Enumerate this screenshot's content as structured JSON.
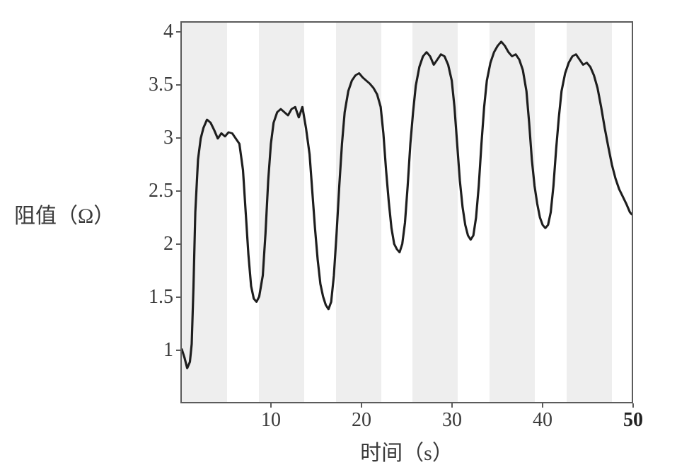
{
  "chart": {
    "type": "line",
    "xlabel": "时间（s）",
    "ylabel": "阻值（Ω）",
    "label_fontsize": 30,
    "tick_fontsize": 28,
    "background_color": "#ffffff",
    "band_color": "#eeeeee",
    "border_color": "#5b5b5b",
    "line_color": "#1e1e1e",
    "line_width": 3.2,
    "xlim": [
      0,
      50
    ],
    "ylim": [
      0.5,
      4.1
    ],
    "xticks": [
      10,
      20,
      30,
      40,
      50
    ],
    "xtick_labels": [
      "10",
      "20",
      "30",
      "40",
      "50"
    ],
    "yticks": [
      1,
      1.5,
      2,
      2.5,
      3,
      3.5,
      4
    ],
    "ytick_labels": [
      "1",
      "1.5",
      "2",
      "2.5",
      "3",
      "3.5",
      "4"
    ],
    "bands": [
      {
        "start": 0,
        "end": 5
      },
      {
        "start": 8.5,
        "end": 13.5
      },
      {
        "start": 17,
        "end": 22
      },
      {
        "start": 25.5,
        "end": 30.5
      },
      {
        "start": 34,
        "end": 39
      },
      {
        "start": 42.5,
        "end": 47.5
      }
    ],
    "series_xy": [
      [
        0.0,
        1.0
      ],
      [
        0.3,
        0.92
      ],
      [
        0.6,
        0.82
      ],
      [
        0.9,
        0.88
      ],
      [
        1.1,
        1.05
      ],
      [
        1.3,
        1.6
      ],
      [
        1.5,
        2.3
      ],
      [
        1.8,
        2.8
      ],
      [
        2.1,
        3.0
      ],
      [
        2.4,
        3.1
      ],
      [
        2.8,
        3.18
      ],
      [
        3.2,
        3.15
      ],
      [
        3.6,
        3.08
      ],
      [
        4.0,
        3.0
      ],
      [
        4.4,
        3.05
      ],
      [
        4.8,
        3.02
      ],
      [
        5.2,
        3.06
      ],
      [
        5.6,
        3.05
      ],
      [
        6.0,
        3.0
      ],
      [
        6.4,
        2.95
      ],
      [
        6.8,
        2.7
      ],
      [
        7.1,
        2.3
      ],
      [
        7.4,
        1.9
      ],
      [
        7.7,
        1.6
      ],
      [
        8.0,
        1.48
      ],
      [
        8.3,
        1.45
      ],
      [
        8.6,
        1.5
      ],
      [
        9.0,
        1.7
      ],
      [
        9.3,
        2.1
      ],
      [
        9.6,
        2.6
      ],
      [
        9.9,
        2.95
      ],
      [
        10.2,
        3.15
      ],
      [
        10.6,
        3.25
      ],
      [
        11.0,
        3.28
      ],
      [
        11.4,
        3.25
      ],
      [
        11.8,
        3.22
      ],
      [
        12.2,
        3.28
      ],
      [
        12.6,
        3.3
      ],
      [
        13.0,
        3.2
      ],
      [
        13.4,
        3.3
      ],
      [
        13.8,
        3.1
      ],
      [
        14.2,
        2.85
      ],
      [
        14.5,
        2.5
      ],
      [
        14.8,
        2.15
      ],
      [
        15.1,
        1.85
      ],
      [
        15.4,
        1.62
      ],
      [
        15.7,
        1.5
      ],
      [
        16.0,
        1.42
      ],
      [
        16.3,
        1.38
      ],
      [
        16.6,
        1.45
      ],
      [
        16.9,
        1.7
      ],
      [
        17.2,
        2.1
      ],
      [
        17.5,
        2.55
      ],
      [
        17.8,
        2.95
      ],
      [
        18.1,
        3.25
      ],
      [
        18.5,
        3.45
      ],
      [
        18.9,
        3.55
      ],
      [
        19.3,
        3.6
      ],
      [
        19.7,
        3.62
      ],
      [
        20.1,
        3.58
      ],
      [
        20.5,
        3.55
      ],
      [
        20.9,
        3.52
      ],
      [
        21.3,
        3.48
      ],
      [
        21.7,
        3.42
      ],
      [
        22.1,
        3.3
      ],
      [
        22.4,
        3.05
      ],
      [
        22.7,
        2.7
      ],
      [
        23.0,
        2.4
      ],
      [
        23.3,
        2.15
      ],
      [
        23.6,
        2.0
      ],
      [
        23.9,
        1.95
      ],
      [
        24.2,
        1.92
      ],
      [
        24.5,
        2.0
      ],
      [
        24.8,
        2.2
      ],
      [
        25.1,
        2.55
      ],
      [
        25.4,
        2.95
      ],
      [
        25.7,
        3.25
      ],
      [
        26.0,
        3.5
      ],
      [
        26.4,
        3.68
      ],
      [
        26.8,
        3.78
      ],
      [
        27.2,
        3.82
      ],
      [
        27.6,
        3.78
      ],
      [
        28.0,
        3.7
      ],
      [
        28.4,
        3.75
      ],
      [
        28.8,
        3.8
      ],
      [
        29.2,
        3.78
      ],
      [
        29.6,
        3.7
      ],
      [
        30.0,
        3.55
      ],
      [
        30.3,
        3.3
      ],
      [
        30.6,
        2.95
      ],
      [
        30.9,
        2.6
      ],
      [
        31.2,
        2.35
      ],
      [
        31.5,
        2.18
      ],
      [
        31.8,
        2.08
      ],
      [
        32.1,
        2.04
      ],
      [
        32.4,
        2.08
      ],
      [
        32.7,
        2.25
      ],
      [
        33.0,
        2.55
      ],
      [
        33.3,
        2.95
      ],
      [
        33.6,
        3.3
      ],
      [
        33.9,
        3.55
      ],
      [
        34.3,
        3.72
      ],
      [
        34.7,
        3.82
      ],
      [
        35.1,
        3.88
      ],
      [
        35.5,
        3.92
      ],
      [
        35.9,
        3.88
      ],
      [
        36.3,
        3.82
      ],
      [
        36.7,
        3.78
      ],
      [
        37.1,
        3.8
      ],
      [
        37.5,
        3.75
      ],
      [
        37.9,
        3.65
      ],
      [
        38.3,
        3.45
      ],
      [
        38.6,
        3.15
      ],
      [
        38.9,
        2.8
      ],
      [
        39.2,
        2.55
      ],
      [
        39.5,
        2.38
      ],
      [
        39.8,
        2.25
      ],
      [
        40.1,
        2.18
      ],
      [
        40.4,
        2.15
      ],
      [
        40.7,
        2.18
      ],
      [
        41.0,
        2.3
      ],
      [
        41.3,
        2.55
      ],
      [
        41.6,
        2.9
      ],
      [
        41.9,
        3.2
      ],
      [
        42.2,
        3.45
      ],
      [
        42.6,
        3.62
      ],
      [
        43.0,
        3.72
      ],
      [
        43.4,
        3.78
      ],
      [
        43.8,
        3.8
      ],
      [
        44.2,
        3.75
      ],
      [
        44.6,
        3.7
      ],
      [
        45.0,
        3.72
      ],
      [
        45.4,
        3.68
      ],
      [
        45.8,
        3.6
      ],
      [
        46.2,
        3.48
      ],
      [
        46.6,
        3.3
      ],
      [
        47.0,
        3.1
      ],
      [
        47.4,
        2.92
      ],
      [
        47.8,
        2.75
      ],
      [
        48.2,
        2.62
      ],
      [
        48.6,
        2.52
      ],
      [
        49.0,
        2.45
      ],
      [
        49.4,
        2.38
      ],
      [
        49.8,
        2.3
      ],
      [
        50.0,
        2.28
      ]
    ]
  }
}
